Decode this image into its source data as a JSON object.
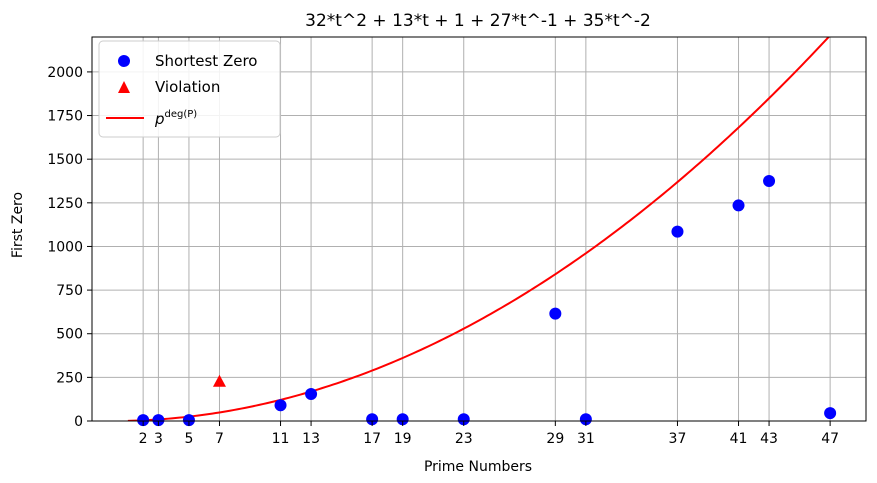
{
  "chart_data": {
    "type": "scatter",
    "title": "32*t^2 + 13*t + 1 + 27*t^-1 + 35*t^-2",
    "xlabel": "Prime Numbers",
    "ylabel": "First Zero",
    "xlim": [
      -1.35,
      49.35
    ],
    "ylim": [
      0,
      2200
    ],
    "grid": true,
    "legend_position": "top-left",
    "x_ticks": [
      2,
      3,
      5,
      7,
      11,
      13,
      17,
      19,
      23,
      29,
      31,
      37,
      41,
      43,
      47
    ],
    "y_ticks": [
      0,
      250,
      500,
      750,
      1000,
      1250,
      1500,
      1750,
      2000
    ],
    "series": [
      {
        "name": "Shortest Zero",
        "kind": "scatter",
        "marker": "circle",
        "color": "#0000ff",
        "x": [
          2,
          3,
          5,
          11,
          13,
          17,
          19,
          23,
          29,
          31,
          37,
          41,
          43,
          47
        ],
        "y": [
          5,
          5,
          5,
          90,
          155,
          10,
          10,
          10,
          615,
          10,
          1085,
          1235,
          1375,
          45
        ]
      },
      {
        "name": "Violation",
        "kind": "scatter",
        "marker": "triangle",
        "color": "#ff0000",
        "x": [
          7
        ],
        "y": [
          225
        ]
      },
      {
        "name": "p",
        "name_superscript": "deg(P)",
        "kind": "line",
        "color": "#ff0000",
        "function": "x^2",
        "x_range": [
          1,
          49
        ]
      }
    ]
  }
}
